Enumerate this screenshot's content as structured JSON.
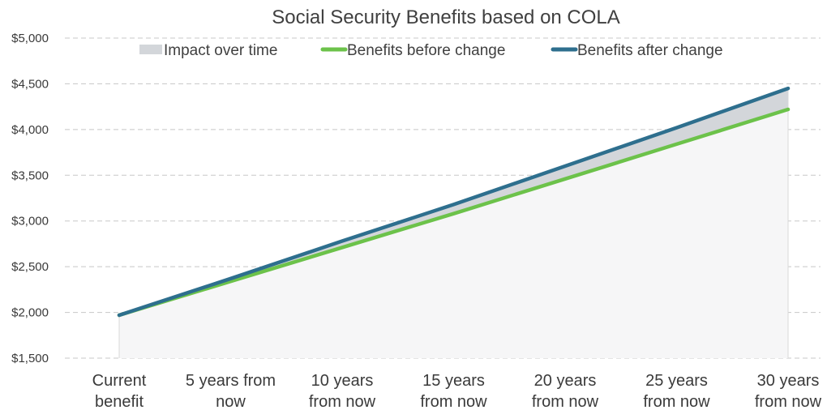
{
  "chart_data": {
    "type": "line",
    "title": "Social Security Benefits based on COLA",
    "xlabel": "",
    "ylabel": "",
    "categories": [
      [
        "Current",
        "benefit"
      ],
      [
        "5 years from",
        "now"
      ],
      [
        "10 years",
        "from now"
      ],
      [
        "15 years",
        "from now"
      ],
      [
        "20 years",
        "from now"
      ],
      [
        "25 years",
        "from now"
      ],
      [
        "30 years",
        "from now"
      ]
    ],
    "ylim": [
      1500,
      5000
    ],
    "yticks": [
      1500,
      2000,
      2500,
      3000,
      3500,
      4000,
      4500,
      5000
    ],
    "ytick_labels": [
      "$1,500",
      "$2,000",
      "$2,500",
      "$3,000",
      "$3,500",
      "$4,000",
      "$4,500",
      "$5,000"
    ],
    "grid": true,
    "legend_position": "top",
    "series": [
      {
        "name": "Impact over time",
        "kind": "area",
        "color": "#d3d6da"
      },
      {
        "name": "Benefits before change",
        "kind": "line",
        "color": "#6cc24a",
        "values": [
          1970,
          2340,
          2710,
          3080,
          3460,
          3840,
          4220
        ]
      },
      {
        "name": "Benefits after change",
        "kind": "line",
        "color": "#2e6f8e",
        "values": [
          1970,
          2370,
          2780,
          3180,
          3600,
          4020,
          4450
        ]
      }
    ]
  }
}
